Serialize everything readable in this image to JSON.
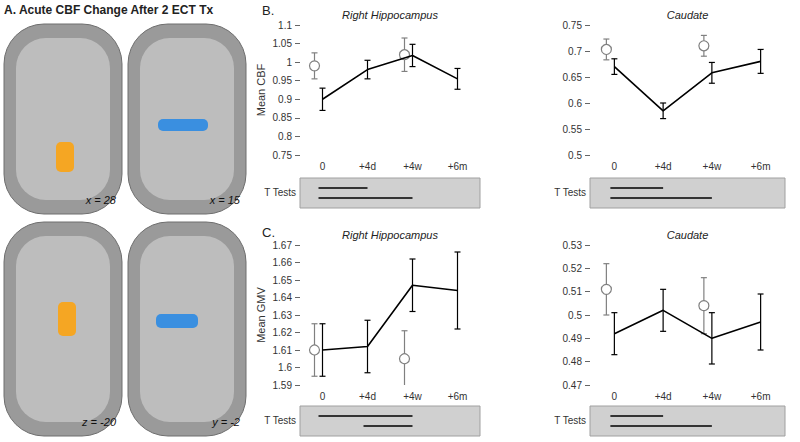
{
  "panel_a": {
    "title": "A. Acute CBF Change After 2 ECT Tx",
    "slices": [
      "x = 28",
      "x = 15",
      "z = -20",
      "y = -2"
    ]
  },
  "chart_data": [
    {
      "type": "line",
      "panel_label": "B.",
      "title": "Right Hippocampus",
      "y_label": "Mean CBF",
      "categories": [
        "0",
        "+4d",
        "+4w",
        "+6m"
      ],
      "ylim": [
        0.75,
        1.1
      ],
      "yticks": [
        0.75,
        0.8,
        0.85,
        0.9,
        0.95,
        1,
        1.05,
        1.1
      ],
      "grid": false,
      "series": [
        {
          "color": "#000000",
          "line_style": "solid",
          "marker": "none",
          "values": [
            0.9,
            0.98,
            1.018,
            0.955
          ],
          "errors": [
            0.03,
            0.025,
            0.03,
            0.028
          ]
        },
        {
          "color": "#808080",
          "line_style": "none",
          "marker": "circle",
          "values": [
            0.99,
            null,
            1.02,
            null
          ],
          "errors": [
            0.035,
            null,
            0.045,
            null
          ]
        }
      ],
      "t_tests": {
        "label": "T Tests",
        "comparisons": [
          [
            "0",
            "+4d"
          ],
          [
            "0",
            "+4w"
          ]
        ]
      }
    },
    {
      "type": "line",
      "title": "Caudate",
      "categories": [
        "0",
        "+4d",
        "+4w",
        "+6m"
      ],
      "ylim": [
        0.5,
        0.75
      ],
      "yticks": [
        0.5,
        0.55,
        0.6,
        0.65,
        0.7,
        0.75
      ],
      "grid": false,
      "series": [
        {
          "color": "#000000",
          "line_style": "solid",
          "marker": "none",
          "values": [
            0.67,
            0.585,
            0.658,
            0.68
          ],
          "errors": [
            0.015,
            0.015,
            0.02,
            0.023
          ]
        },
        {
          "color": "#808080",
          "line_style": "none",
          "marker": "circle",
          "values": [
            0.703,
            null,
            0.71,
            null
          ],
          "errors": [
            0.02,
            null,
            0.02,
            null
          ]
        }
      ],
      "t_tests": {
        "label": "T Tests",
        "comparisons": [
          [
            "0",
            "+4d"
          ],
          [
            "0",
            "+4w"
          ]
        ]
      }
    },
    {
      "type": "line",
      "panel_label": "C.",
      "title": "Right Hippocampus",
      "y_label": "Mean GMV",
      "categories": [
        "0",
        "+4d",
        "+4w",
        "+6m"
      ],
      "ylim": [
        1.59,
        1.67
      ],
      "yticks": [
        1.59,
        1.6,
        1.61,
        1.62,
        1.63,
        1.64,
        1.65,
        1.66,
        1.67
      ],
      "grid": false,
      "series": [
        {
          "color": "#000000",
          "line_style": "solid",
          "marker": "none",
          "values": [
            1.61,
            1.612,
            1.647,
            1.644
          ],
          "errors": [
            0.015,
            0.015,
            0.015,
            0.022
          ]
        },
        {
          "color": "#808080",
          "line_style": "none",
          "marker": "circle",
          "values": [
            1.61,
            null,
            1.605,
            null
          ],
          "errors": [
            0.015,
            null,
            0.016,
            null
          ]
        }
      ],
      "t_tests": {
        "label": "T Tests",
        "comparisons": [
          [
            "0",
            "+4w"
          ],
          [
            "+4d",
            "+4w"
          ]
        ]
      }
    },
    {
      "type": "line",
      "title": "Caudate",
      "categories": [
        "0",
        "+4d",
        "+4w",
        "+6m"
      ],
      "ylim": [
        0.47,
        0.53
      ],
      "yticks": [
        0.47,
        0.48,
        0.49,
        0.5,
        0.51,
        0.52,
        0.53
      ],
      "grid": false,
      "series": [
        {
          "color": "#000000",
          "line_style": "solid",
          "marker": "none",
          "values": [
            0.492,
            0.502,
            0.49,
            0.497
          ],
          "errors": [
            0.009,
            0.009,
            0.011,
            0.012
          ]
        },
        {
          "color": "#808080",
          "line_style": "none",
          "marker": "circle",
          "values": [
            0.511,
            null,
            0.504,
            null
          ],
          "errors": [
            0.011,
            null,
            0.012,
            null
          ]
        }
      ],
      "t_tests": {
        "label": "T Tests",
        "comparisons": [
          [
            "0",
            "+4d"
          ],
          [
            "0",
            "+4w"
          ]
        ]
      }
    }
  ]
}
